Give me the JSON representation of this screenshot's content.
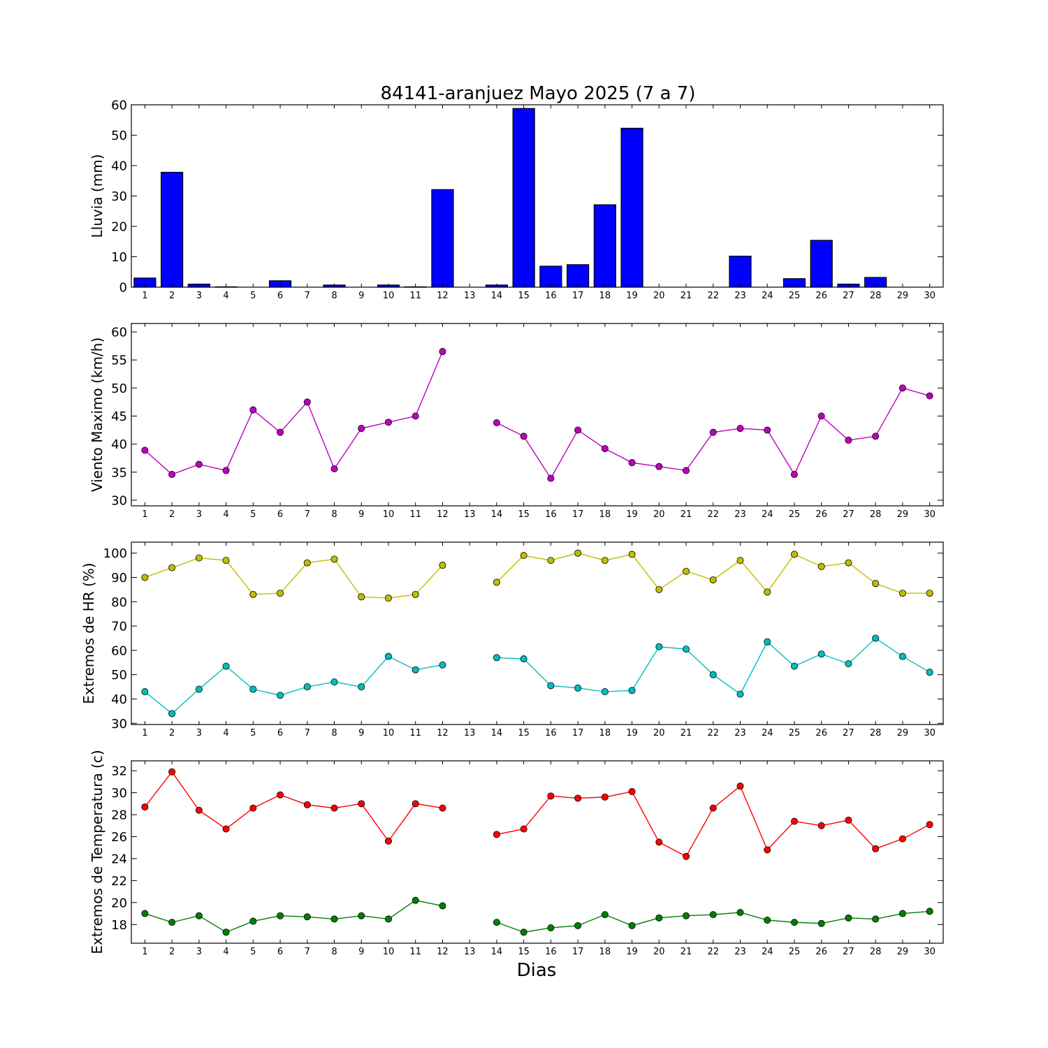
{
  "figure": {
    "title": "84141-aranjuez Mayo 2025  (7 a 7)",
    "xlabel": "Dias"
  },
  "chart_data": [
    {
      "type": "bar",
      "ylabel": "Lluvia (mm)",
      "ylim": [
        0,
        60
      ],
      "yticks": [
        0,
        10,
        20,
        30,
        40,
        50,
        60
      ],
      "categories": [
        1,
        2,
        3,
        4,
        5,
        6,
        7,
        8,
        9,
        10,
        11,
        12,
        13,
        14,
        15,
        16,
        17,
        18,
        19,
        20,
        21,
        22,
        23,
        24,
        25,
        26,
        27,
        28,
        29,
        30
      ],
      "series": [
        {
          "color": "#0000ff",
          "values": [
            3.0,
            37.8,
            1.0,
            0.1,
            0.0,
            2.1,
            0.0,
            0.7,
            0.0,
            0.7,
            0.1,
            32.1,
            0.0,
            0.7,
            58.8,
            6.9,
            7.4,
            27.1,
            52.3,
            0.0,
            0.0,
            0.0,
            10.2,
            0.0,
            2.8,
            15.4,
            1.0,
            3.2,
            0.0,
            0.0
          ]
        }
      ]
    },
    {
      "type": "line",
      "ylabel": "Viento Maximo (km/h)",
      "ylim": [
        29,
        61.5
      ],
      "yticks": [
        30,
        35,
        40,
        45,
        50,
        55,
        60
      ],
      "categories": [
        1,
        2,
        3,
        4,
        5,
        6,
        7,
        8,
        9,
        10,
        11,
        12,
        13,
        14,
        15,
        16,
        17,
        18,
        19,
        20,
        21,
        22,
        23,
        24,
        25,
        26,
        27,
        28,
        29,
        30
      ],
      "series": [
        {
          "color": "#bf00bf",
          "values": [
            38.9,
            34.6,
            36.4,
            35.3,
            46.1,
            42.1,
            47.5,
            35.6,
            42.8,
            43.9,
            45.0,
            56.5,
            null,
            43.8,
            41.4,
            33.9,
            42.5,
            39.2,
            36.7,
            36.0,
            35.3,
            42.1,
            42.8,
            42.5,
            34.6,
            45.0,
            40.7,
            41.4,
            50.0,
            48.6
          ]
        }
      ]
    },
    {
      "type": "line",
      "ylabel": "Extremos de HR (%)",
      "ylim": [
        29.5,
        104.5
      ],
      "yticks": [
        30,
        40,
        50,
        60,
        70,
        80,
        90,
        100
      ],
      "categories": [
        1,
        2,
        3,
        4,
        5,
        6,
        7,
        8,
        9,
        10,
        11,
        12,
        13,
        14,
        15,
        16,
        17,
        18,
        19,
        20,
        21,
        22,
        23,
        24,
        25,
        26,
        27,
        28,
        29,
        30
      ],
      "series": [
        {
          "color": "#bfbf00",
          "values": [
            90,
            94,
            98,
            97,
            83,
            83.5,
            96,
            97.5,
            82,
            81.5,
            83,
            95,
            null,
            88,
            99,
            97,
            100,
            97,
            99.5,
            85,
            92.5,
            89,
            97,
            84,
            99.5,
            94.5,
            96,
            87.5,
            83.5,
            83.5
          ]
        },
        {
          "color": "#00bfbf",
          "values": [
            43,
            34,
            44,
            53.5,
            44,
            41.5,
            45,
            47,
            45,
            57.5,
            52,
            54,
            null,
            57,
            56.5,
            45.5,
            44.5,
            43,
            43.5,
            61.5,
            60.5,
            50,
            42,
            63.5,
            53.5,
            58.5,
            54.5,
            65,
            57.5,
            51
          ]
        }
      ]
    },
    {
      "type": "line",
      "ylabel": "Extremos de Temperatura (c)",
      "ylim": [
        16.3,
        32.9
      ],
      "yticks": [
        18,
        20,
        22,
        24,
        26,
        28,
        30,
        32
      ],
      "categories": [
        1,
        2,
        3,
        4,
        5,
        6,
        7,
        8,
        9,
        10,
        11,
        12,
        13,
        14,
        15,
        16,
        17,
        18,
        19,
        20,
        21,
        22,
        23,
        24,
        25,
        26,
        27,
        28,
        29,
        30
      ],
      "series": [
        {
          "color": "#ff0000",
          "values": [
            28.7,
            31.9,
            28.4,
            26.7,
            28.6,
            29.8,
            28.9,
            28.6,
            29.0,
            25.6,
            29.0,
            28.6,
            null,
            26.2,
            26.7,
            29.7,
            29.5,
            29.6,
            30.1,
            25.5,
            24.2,
            28.6,
            30.6,
            24.8,
            27.4,
            27.0,
            27.5,
            24.9,
            25.8,
            27.1
          ]
        },
        {
          "color": "#007f00",
          "values": [
            19.0,
            18.2,
            18.8,
            17.3,
            18.3,
            18.8,
            18.7,
            18.5,
            18.8,
            18.5,
            20.2,
            19.7,
            null,
            18.2,
            17.3,
            17.7,
            17.9,
            18.9,
            17.9,
            18.6,
            18.8,
            18.9,
            19.1,
            18.4,
            18.2,
            18.1,
            18.6,
            18.5,
            19.0,
            19.2
          ]
        }
      ]
    }
  ]
}
